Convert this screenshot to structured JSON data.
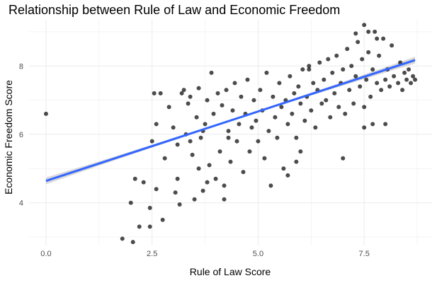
{
  "chart_data": {
    "type": "scatter",
    "title": "Relationship between Rule of Law and Economic Freedom",
    "xlabel": "Rule of Law Score",
    "ylabel": "Economic Freedom Score",
    "xlim": [
      -0.4,
      9.1
    ],
    "ylim": [
      2.75,
      9.35
    ],
    "x_ticks": [
      0,
      2.5,
      5,
      7.5
    ],
    "x_tick_labels": [
      "0.0",
      "2.5",
      "5.0",
      "7.5"
    ],
    "y_ticks": [
      4,
      6,
      8
    ],
    "y_tick_labels": [
      "4",
      "6",
      "8"
    ],
    "grid": true,
    "regression": {
      "slope": 0.406,
      "intercept": 4.64,
      "x_range": [
        0,
        8.7
      ],
      "ci_halfwidth_end": 0.1,
      "ci_halfwidth_center": 0.03,
      "color": "#3366ff",
      "band_color": "#bfbfbf"
    },
    "point_color": "#000000",
    "point_opacity": 0.7,
    "series": [
      {
        "points": [
          [
            0.0,
            6.6
          ],
          [
            1.8,
            2.95
          ],
          [
            2.05,
            2.85
          ],
          [
            2.2,
            3.3
          ],
          [
            2.45,
            3.3
          ],
          [
            2.45,
            3.85
          ],
          [
            2.5,
            5.8
          ],
          [
            2.6,
            6.3
          ],
          [
            2.55,
            7.2
          ],
          [
            2.7,
            7.2
          ],
          [
            2.8,
            5.3
          ],
          [
            2.75,
            3.5
          ],
          [
            2.9,
            6.8
          ],
          [
            3.0,
            6.2
          ],
          [
            3.1,
            5.7
          ],
          [
            3.1,
            4.7
          ],
          [
            3.15,
            3.95
          ],
          [
            3.05,
            4.3
          ],
          [
            3.25,
            7.3
          ],
          [
            3.35,
            6.9
          ],
          [
            3.4,
            7.1
          ],
          [
            3.45,
            5.4
          ],
          [
            3.5,
            4.1
          ],
          [
            3.55,
            6.5
          ],
          [
            3.6,
            7.35
          ],
          [
            3.65,
            5.9
          ],
          [
            3.7,
            4.35
          ],
          [
            3.75,
            6.3
          ],
          [
            3.8,
            7.0
          ],
          [
            3.85,
            5.1
          ],
          [
            3.9,
            7.8
          ],
          [
            3.95,
            6.6
          ],
          [
            4.0,
            4.7
          ],
          [
            4.05,
            7.2
          ],
          [
            4.1,
            5.5
          ],
          [
            4.15,
            6.85
          ],
          [
            4.2,
            4.1
          ],
          [
            4.25,
            7.3
          ],
          [
            4.3,
            6.1
          ],
          [
            4.35,
            5.2
          ],
          [
            4.4,
            6.7
          ],
          [
            4.45,
            7.5
          ],
          [
            4.5,
            5.8
          ],
          [
            4.55,
            6.3
          ],
          [
            4.6,
            7.1
          ],
          [
            4.65,
            4.9
          ],
          [
            4.7,
            6.6
          ],
          [
            4.75,
            7.6
          ],
          [
            4.8,
            5.5
          ],
          [
            4.85,
            6.2
          ],
          [
            4.9,
            7.0
          ],
          [
            4.95,
            6.4
          ],
          [
            5.0,
            5.8
          ],
          [
            5.05,
            7.3
          ],
          [
            5.1,
            6.7
          ],
          [
            5.15,
            5.3
          ],
          [
            5.2,
            7.8
          ],
          [
            5.25,
            6.1
          ],
          [
            5.3,
            4.5
          ],
          [
            5.35,
            7.1
          ],
          [
            5.4,
            6.5
          ],
          [
            5.45,
            5.9
          ],
          [
            5.5,
            7.5
          ],
          [
            5.55,
            6.8
          ],
          [
            5.6,
            5.0
          ],
          [
            5.65,
            7.0
          ],
          [
            5.7,
            6.3
          ],
          [
            5.75,
            7.7
          ],
          [
            5.8,
            6.6
          ],
          [
            5.85,
            7.2
          ],
          [
            5.9,
            5.9
          ],
          [
            5.95,
            7.4
          ],
          [
            6.0,
            6.9
          ],
          [
            6.05,
            7.9
          ],
          [
            6.1,
            6.4
          ],
          [
            6.15,
            7.1
          ],
          [
            6.2,
            8.0
          ],
          [
            6.25,
            6.7
          ],
          [
            6.3,
            7.5
          ],
          [
            6.35,
            6.2
          ],
          [
            6.4,
            7.3
          ],
          [
            6.45,
            8.1
          ],
          [
            6.5,
            6.9
          ],
          [
            6.55,
            7.6
          ],
          [
            6.6,
            7.0
          ],
          [
            6.65,
            8.2
          ],
          [
            6.7,
            6.5
          ],
          [
            6.75,
            7.8
          ],
          [
            6.8,
            7.2
          ],
          [
            6.85,
            8.3
          ],
          [
            6.9,
            6.8
          ],
          [
            6.95,
            7.5
          ],
          [
            7.0,
            7.9
          ],
          [
            7.05,
            6.6
          ],
          [
            7.1,
            8.5
          ],
          [
            7.15,
            7.3
          ],
          [
            7.2,
            8.0
          ],
          [
            7.25,
            6.9
          ],
          [
            7.3,
            7.7
          ],
          [
            7.35,
            8.7
          ],
          [
            7.4,
            7.4
          ],
          [
            7.45,
            8.2
          ],
          [
            7.5,
            6.8
          ],
          [
            7.55,
            7.6
          ],
          [
            7.6,
            8.4
          ],
          [
            7.65,
            7.1
          ],
          [
            7.7,
            7.9
          ],
          [
            7.75,
            9.0
          ],
          [
            7.8,
            7.5
          ],
          [
            7.85,
            8.3
          ],
          [
            7.9,
            7.3
          ],
          [
            7.95,
            8.8
          ],
          [
            8.0,
            7.6
          ],
          [
            8.05,
            7.9
          ],
          [
            8.1,
            7.4
          ],
          [
            8.15,
            8.6
          ],
          [
            8.2,
            7.7
          ],
          [
            8.3,
            7.5
          ],
          [
            8.35,
            8.1
          ],
          [
            8.4,
            7.3
          ],
          [
            8.45,
            7.8
          ],
          [
            8.5,
            7.6
          ],
          [
            8.55,
            7.9
          ],
          [
            8.6,
            7.5
          ],
          [
            8.65,
            7.7
          ],
          [
            8.7,
            7.6
          ],
          [
            7.3,
            8.95
          ],
          [
            7.5,
            9.2
          ],
          [
            7.6,
            9.0
          ],
          [
            7.8,
            8.8
          ],
          [
            7.0,
            5.3
          ],
          [
            7.5,
            6.2
          ],
          [
            7.7,
            6.3
          ],
          [
            8.0,
            6.3
          ],
          [
            3.2,
            7.2
          ],
          [
            3.6,
            5.0
          ],
          [
            3.8,
            4.6
          ],
          [
            4.2,
            4.5
          ],
          [
            2.3,
            4.6
          ],
          [
            2.1,
            4.7
          ],
          [
            2.6,
            4.4
          ],
          [
            2.0,
            4.0
          ],
          [
            5.7,
            4.8
          ],
          [
            6.0,
            5.5
          ],
          [
            5.9,
            5.2
          ],
          [
            6.2,
            7.9
          ],
          [
            3.3,
            6.0
          ],
          [
            3.4,
            5.8
          ],
          [
            3.7,
            6.1
          ],
          [
            4.3,
            5.9
          ]
        ]
      }
    ]
  }
}
